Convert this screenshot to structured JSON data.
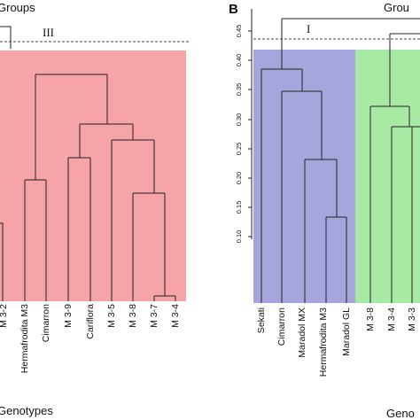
{
  "panel_a": {
    "header_label": "Groups",
    "group_label": "III",
    "footer_label": "Genotypes",
    "leaves": [
      "M 3-2",
      "Hermafrodita M3",
      "Cimarron",
      "M 3-9",
      "Cariflora",
      "M 3-5",
      "M 3-8",
      "M 3-7",
      "M 3-4"
    ]
  },
  "panel_b": {
    "panel_letter": "B",
    "header_label": "Grou",
    "group_label": "I",
    "footer_label": "Geno",
    "y_ticks": [
      "0.10",
      "0.15",
      "0.20",
      "0.25",
      "0.30",
      "0.35",
      "0.40",
      "0.45"
    ],
    "leaves": [
      "Sekati",
      "Cimarron",
      "Maradol MX",
      "Hermafrodita M3",
      "Maradol GL",
      "M 3-8",
      "M 3-4",
      "M 3-3"
    ]
  },
  "colors": {
    "group_red": "#f7a4a8",
    "group_blue": "#a6a6dc",
    "group_green": "#a8eaa4",
    "line": "#222222",
    "dashed": "#444444"
  }
}
